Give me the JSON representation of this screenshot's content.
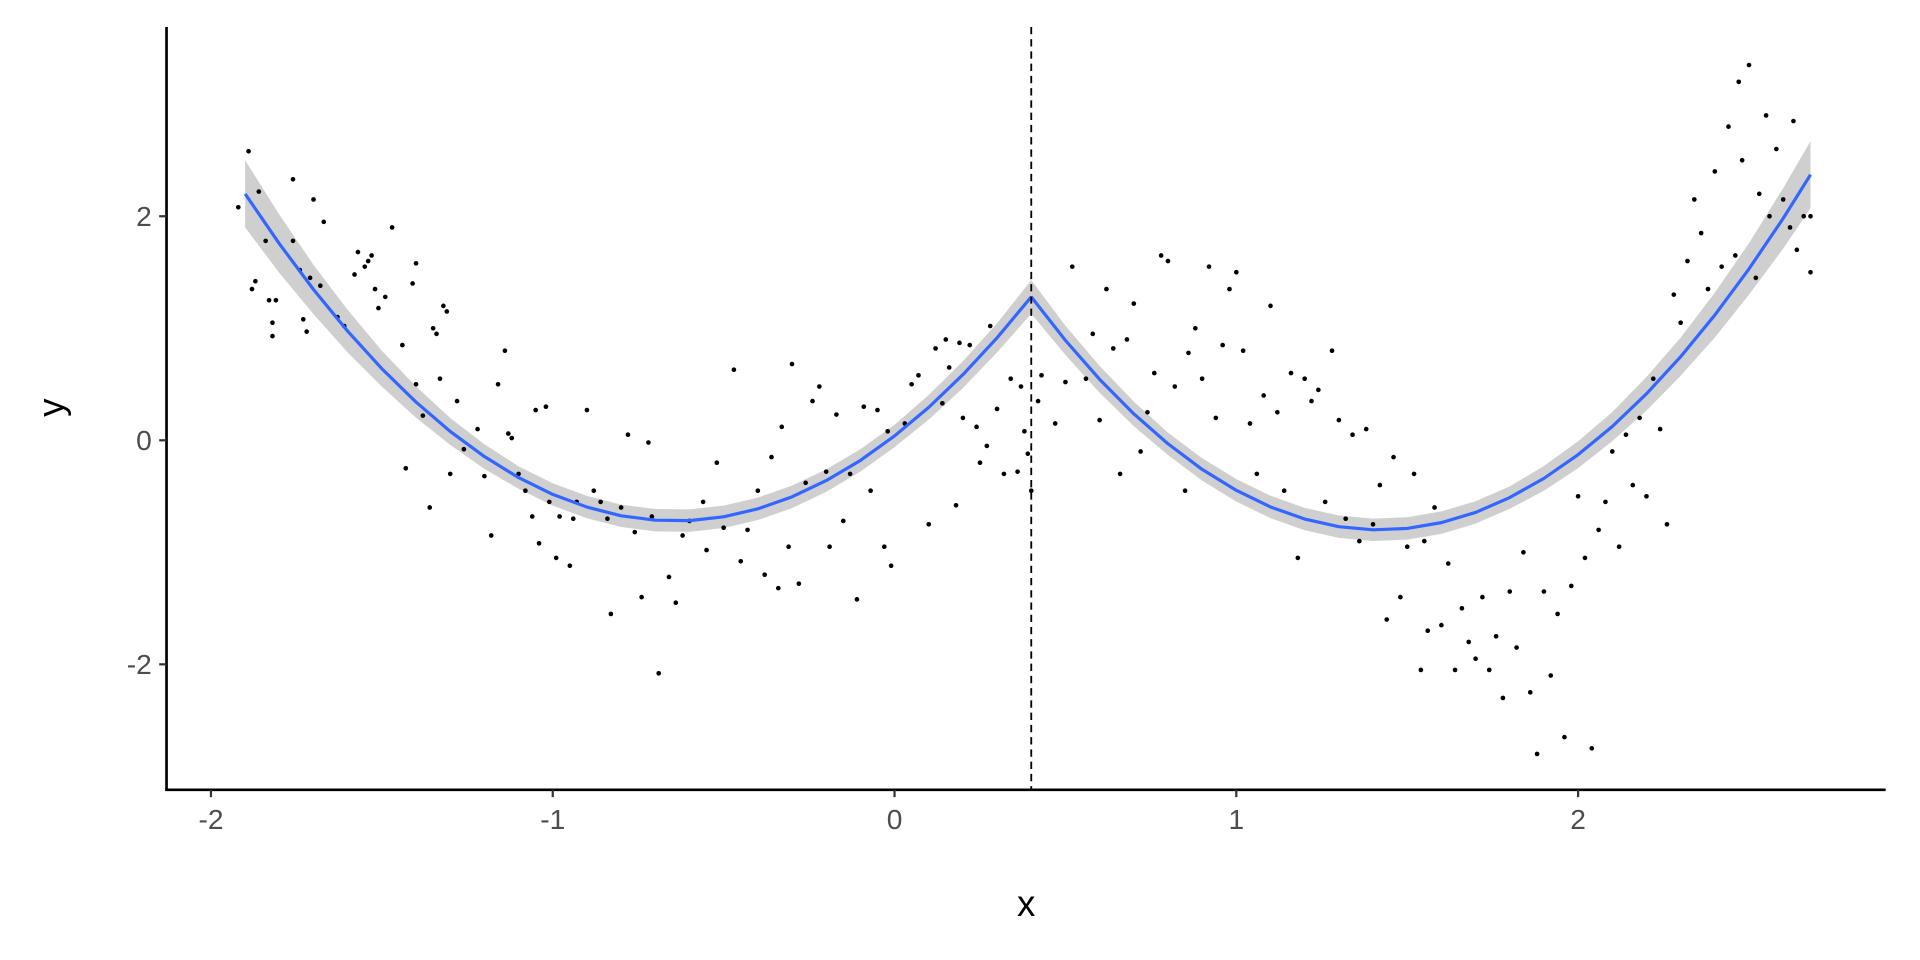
{
  "chart_data": {
    "type": "scatter",
    "xlabel": "x",
    "ylabel": "y",
    "xlim": [
      -2.13,
      2.9
    ],
    "ylim": [
      -3.12,
      3.69
    ],
    "x_ticks": [
      -2,
      -1,
      0,
      1,
      2
    ],
    "y_ticks": [
      -2,
      0,
      2
    ],
    "x_tick_labels": [
      "-2",
      "-1",
      "0",
      "1",
      "2"
    ],
    "y_tick_labels": [
      "-2",
      "0",
      "2"
    ],
    "grid": false,
    "vline": {
      "x": 0.4,
      "style": "dashed",
      "color": "#000000"
    },
    "colors": {
      "points": "#000000",
      "fit": "#3366FF",
      "band": "#CFCFCF"
    },
    "points": [
      [
        -1.92,
        2.08
      ],
      [
        -1.89,
        2.58
      ],
      [
        -1.88,
        1.35
      ],
      [
        -1.87,
        1.42
      ],
      [
        -1.86,
        2.22
      ],
      [
        -1.84,
        1.78
      ],
      [
        -1.83,
        1.25
      ],
      [
        -1.82,
        1.05
      ],
      [
        -1.82,
        0.93
      ],
      [
        -1.81,
        1.25
      ],
      [
        -1.76,
        2.33
      ],
      [
        -1.76,
        1.78
      ],
      [
        -1.74,
        1.52
      ],
      [
        -1.73,
        1.08
      ],
      [
        -1.72,
        0.97
      ],
      [
        -1.71,
        1.45
      ],
      [
        -1.7,
        2.15
      ],
      [
        -1.68,
        1.38
      ],
      [
        -1.67,
        1.95
      ],
      [
        -1.63,
        1.1
      ],
      [
        -1.61,
        1.02
      ],
      [
        -1.58,
        1.48
      ],
      [
        -1.57,
        1.68
      ],
      [
        -1.55,
        1.55
      ],
      [
        -1.54,
        1.6
      ],
      [
        -1.53,
        1.65
      ],
      [
        -1.52,
        1.35
      ],
      [
        -1.51,
        1.18
      ],
      [
        -1.49,
        1.28
      ],
      [
        -1.47,
        1.9
      ],
      [
        -1.44,
        0.85
      ],
      [
        -1.4,
        1.58
      ],
      [
        -1.41,
        1.4
      ],
      [
        -1.35,
        1.0
      ],
      [
        -1.34,
        0.95
      ],
      [
        -1.32,
        1.2
      ],
      [
        -1.31,
        1.15
      ],
      [
        -1.33,
        0.55
      ],
      [
        -1.4,
        0.5
      ],
      [
        -1.43,
        -0.25
      ],
      [
        -1.38,
        0.22
      ],
      [
        -1.36,
        -0.6
      ],
      [
        -1.3,
        -0.3
      ],
      [
        -1.28,
        0.35
      ],
      [
        -1.26,
        -0.08
      ],
      [
        -1.22,
        0.1
      ],
      [
        -1.2,
        -0.32
      ],
      [
        -1.18,
        -0.85
      ],
      [
        -1.16,
        0.5
      ],
      [
        -1.14,
        0.8
      ],
      [
        -1.13,
        0.06
      ],
      [
        -1.12,
        0.02
      ],
      [
        -1.1,
        -0.3
      ],
      [
        -1.08,
        -0.45
      ],
      [
        -1.06,
        -0.68
      ],
      [
        -1.04,
        -0.92
      ],
      [
        -1.05,
        0.27
      ],
      [
        -1.02,
        0.3
      ],
      [
        -1.01,
        -0.55
      ],
      [
        -0.99,
        -1.05
      ],
      [
        -0.98,
        -0.68
      ],
      [
        -0.95,
        -1.12
      ],
      [
        -0.94,
        -0.7
      ],
      [
        -0.93,
        -0.55
      ],
      [
        -0.9,
        0.27
      ],
      [
        -0.88,
        -0.45
      ],
      [
        -0.86,
        -0.55
      ],
      [
        -0.84,
        -0.7
      ],
      [
        -0.83,
        -1.55
      ],
      [
        -0.8,
        -0.6
      ],
      [
        -0.78,
        0.05
      ],
      [
        -0.76,
        -0.82
      ],
      [
        -0.74,
        -1.4
      ],
      [
        -0.72,
        -0.02
      ],
      [
        -0.71,
        -0.68
      ],
      [
        -0.69,
        -2.08
      ],
      [
        -0.66,
        -1.22
      ],
      [
        -0.64,
        -1.45
      ],
      [
        -0.62,
        -0.85
      ],
      [
        -0.6,
        -0.72
      ],
      [
        -0.56,
        -0.55
      ],
      [
        -0.55,
        -0.98
      ],
      [
        -0.52,
        -0.2
      ],
      [
        -0.5,
        -0.78
      ],
      [
        -0.47,
        0.63
      ],
      [
        -0.45,
        -1.08
      ],
      [
        -0.43,
        -0.8
      ],
      [
        -0.4,
        -0.45
      ],
      [
        -0.38,
        -1.2
      ],
      [
        -0.36,
        -0.15
      ],
      [
        -0.34,
        -1.32
      ],
      [
        -0.33,
        0.12
      ],
      [
        -0.31,
        -0.95
      ],
      [
        -0.3,
        0.68
      ],
      [
        -0.28,
        -1.28
      ],
      [
        -0.26,
        -0.38
      ],
      [
        -0.24,
        0.35
      ],
      [
        -0.22,
        0.48
      ],
      [
        -0.2,
        -0.28
      ],
      [
        -0.19,
        -0.95
      ],
      [
        -0.17,
        0.23
      ],
      [
        -0.15,
        -0.72
      ],
      [
        -0.13,
        -0.3
      ],
      [
        -0.11,
        -1.42
      ],
      [
        -0.09,
        0.3
      ],
      [
        -0.07,
        -0.45
      ],
      [
        -0.05,
        0.27
      ],
      [
        -0.03,
        -0.95
      ],
      [
        -0.01,
        -1.12
      ],
      [
        -0.02,
        0.08
      ],
      [
        0.03,
        0.15
      ],
      [
        0.05,
        0.5
      ],
      [
        0.07,
        0.58
      ],
      [
        0.1,
        -0.75
      ],
      [
        0.12,
        0.82
      ],
      [
        0.14,
        0.33
      ],
      [
        0.15,
        0.9
      ],
      [
        0.16,
        0.65
      ],
      [
        0.18,
        -0.58
      ],
      [
        0.19,
        0.87
      ],
      [
        0.2,
        0.2
      ],
      [
        0.22,
        0.85
      ],
      [
        0.24,
        0.12
      ],
      [
        0.25,
        -0.2
      ],
      [
        0.27,
        -0.05
      ],
      [
        0.28,
        1.02
      ],
      [
        0.3,
        0.28
      ],
      [
        0.32,
        -0.3
      ],
      [
        0.34,
        0.55
      ],
      [
        0.36,
        -0.28
      ],
      [
        0.37,
        0.48
      ],
      [
        0.38,
        0.08
      ],
      [
        0.39,
        -0.12
      ],
      [
        0.4,
        -0.45
      ],
      [
        0.42,
        0.35
      ],
      [
        0.43,
        0.58
      ],
      [
        0.47,
        0.15
      ],
      [
        0.5,
        0.52
      ],
      [
        0.52,
        1.55
      ],
      [
        0.56,
        0.55
      ],
      [
        0.58,
        0.95
      ],
      [
        0.6,
        0.18
      ],
      [
        0.62,
        1.35
      ],
      [
        0.64,
        0.82
      ],
      [
        0.66,
        -0.3
      ],
      [
        0.68,
        0.9
      ],
      [
        0.7,
        1.22
      ],
      [
        0.72,
        -0.1
      ],
      [
        0.74,
        0.25
      ],
      [
        0.76,
        0.6
      ],
      [
        0.78,
        1.65
      ],
      [
        0.8,
        1.6
      ],
      [
        0.82,
        0.48
      ],
      [
        0.85,
        -0.45
      ],
      [
        0.86,
        0.78
      ],
      [
        0.88,
        1.0
      ],
      [
        0.9,
        0.55
      ],
      [
        0.92,
        1.55
      ],
      [
        0.94,
        0.2
      ],
      [
        0.96,
        0.85
      ],
      [
        0.98,
        1.35
      ],
      [
        1.0,
        1.5
      ],
      [
        1.02,
        0.8
      ],
      [
        1.04,
        0.15
      ],
      [
        1.06,
        -0.3
      ],
      [
        1.08,
        0.4
      ],
      [
        1.1,
        1.2
      ],
      [
        1.12,
        0.25
      ],
      [
        1.14,
        -0.45
      ],
      [
        1.16,
        0.6
      ],
      [
        1.18,
        -1.05
      ],
      [
        1.2,
        0.55
      ],
      [
        1.22,
        0.35
      ],
      [
        1.24,
        0.45
      ],
      [
        1.26,
        -0.55
      ],
      [
        1.28,
        0.8
      ],
      [
        1.3,
        0.18
      ],
      [
        1.32,
        -0.7
      ],
      [
        1.34,
        0.05
      ],
      [
        1.36,
        -0.9
      ],
      [
        1.38,
        0.1
      ],
      [
        1.4,
        -0.75
      ],
      [
        1.42,
        -0.4
      ],
      [
        1.44,
        -1.6
      ],
      [
        1.46,
        -0.15
      ],
      [
        1.48,
        -1.4
      ],
      [
        1.5,
        -0.95
      ],
      [
        1.52,
        -0.3
      ],
      [
        1.54,
        -2.05
      ],
      [
        1.55,
        -0.9
      ],
      [
        1.56,
        -1.7
      ],
      [
        1.58,
        -0.6
      ],
      [
        1.6,
        -1.65
      ],
      [
        1.62,
        -1.1
      ],
      [
        1.64,
        -2.05
      ],
      [
        1.66,
        -1.5
      ],
      [
        1.68,
        -1.8
      ],
      [
        1.7,
        -1.95
      ],
      [
        1.72,
        -1.4
      ],
      [
        1.74,
        -2.05
      ],
      [
        1.76,
        -1.75
      ],
      [
        1.78,
        -2.3
      ],
      [
        1.8,
        -1.35
      ],
      [
        1.82,
        -1.85
      ],
      [
        1.84,
        -1.0
      ],
      [
        1.86,
        -2.25
      ],
      [
        1.88,
        -2.8
      ],
      [
        1.9,
        -1.35
      ],
      [
        1.92,
        -2.1
      ],
      [
        1.94,
        -1.55
      ],
      [
        1.96,
        -2.65
      ],
      [
        1.98,
        -1.3
      ],
      [
        2.0,
        -0.5
      ],
      [
        2.02,
        -1.05
      ],
      [
        2.04,
        -2.75
      ],
      [
        2.06,
        -0.8
      ],
      [
        2.08,
        -0.55
      ],
      [
        2.1,
        -0.1
      ],
      [
        2.12,
        -0.95
      ],
      [
        2.14,
        0.05
      ],
      [
        2.16,
        -0.4
      ],
      [
        2.18,
        0.2
      ],
      [
        2.2,
        -0.5
      ],
      [
        2.22,
        0.55
      ],
      [
        2.24,
        0.1
      ],
      [
        2.26,
        -0.75
      ],
      [
        2.28,
        1.3
      ],
      [
        2.3,
        1.05
      ],
      [
        2.32,
        1.6
      ],
      [
        2.34,
        2.15
      ],
      [
        2.36,
        1.85
      ],
      [
        2.38,
        1.35
      ],
      [
        2.4,
        2.4
      ],
      [
        2.42,
        1.55
      ],
      [
        2.44,
        2.8
      ],
      [
        2.46,
        1.65
      ],
      [
        2.47,
        3.2
      ],
      [
        2.48,
        2.5
      ],
      [
        2.5,
        3.35
      ],
      [
        2.52,
        1.45
      ],
      [
        2.53,
        2.2
      ],
      [
        2.55,
        2.9
      ],
      [
        2.56,
        2.0
      ],
      [
        2.58,
        2.6
      ],
      [
        2.6,
        2.15
      ],
      [
        2.62,
        1.9
      ],
      [
        2.63,
        2.85
      ],
      [
        2.64,
        1.7
      ],
      [
        2.66,
        2.0
      ],
      [
        2.68,
        1.5
      ],
      [
        2.68,
        2.0
      ]
    ],
    "fit": [
      {
        "x": [
          -1.9,
          -1.8,
          -1.7,
          -1.6,
          -1.5,
          -1.4,
          -1.3,
          -1.2,
          -1.1,
          -1.0,
          -0.9,
          -0.8,
          -0.7,
          -0.6,
          -0.5,
          -0.4,
          -0.3,
          -0.2,
          -0.1,
          0.0,
          0.1,
          0.2,
          0.3,
          0.4
        ],
        "y": [
          2.2,
          1.755,
          1.346,
          0.974,
          0.639,
          0.341,
          0.079,
          -0.145,
          -0.333,
          -0.483,
          -0.596,
          -0.674,
          -0.713,
          -0.717,
          -0.683,
          -0.612,
          -0.505,
          -0.36,
          -0.18,
          0.039,
          0.294,
          0.586,
          0.915,
          1.28
        ],
        "se": [
          0.3,
          0.26,
          0.22,
          0.19,
          0.16,
          0.14,
          0.12,
          0.11,
          0.1,
          0.1,
          0.1,
          0.1,
          0.1,
          0.1,
          0.1,
          0.1,
          0.1,
          0.1,
          0.1,
          0.1,
          0.11,
          0.12,
          0.13,
          0.15
        ]
      },
      {
        "x": [
          0.4,
          0.5,
          0.6,
          0.7,
          0.8,
          0.9,
          1.0,
          1.1,
          1.2,
          1.3,
          1.4,
          1.5,
          1.6,
          1.7,
          1.8,
          1.9,
          2.0,
          2.1,
          2.2,
          2.3,
          2.4,
          2.5,
          2.6,
          2.68
        ],
        "y": [
          1.28,
          0.892,
          0.544,
          0.236,
          -0.031,
          -0.26,
          -0.447,
          -0.595,
          -0.703,
          -0.771,
          -0.799,
          -0.787,
          -0.735,
          -0.644,
          -0.511,
          -0.34,
          -0.128,
          0.123,
          0.415,
          0.746,
          1.118,
          1.53,
          1.981,
          2.371
        ],
        "se": [
          0.15,
          0.13,
          0.12,
          0.11,
          0.1,
          0.1,
          0.1,
          0.1,
          0.1,
          0.1,
          0.1,
          0.1,
          0.1,
          0.1,
          0.1,
          0.11,
          0.12,
          0.13,
          0.15,
          0.17,
          0.2,
          0.23,
          0.27,
          0.3
        ]
      }
    ]
  }
}
